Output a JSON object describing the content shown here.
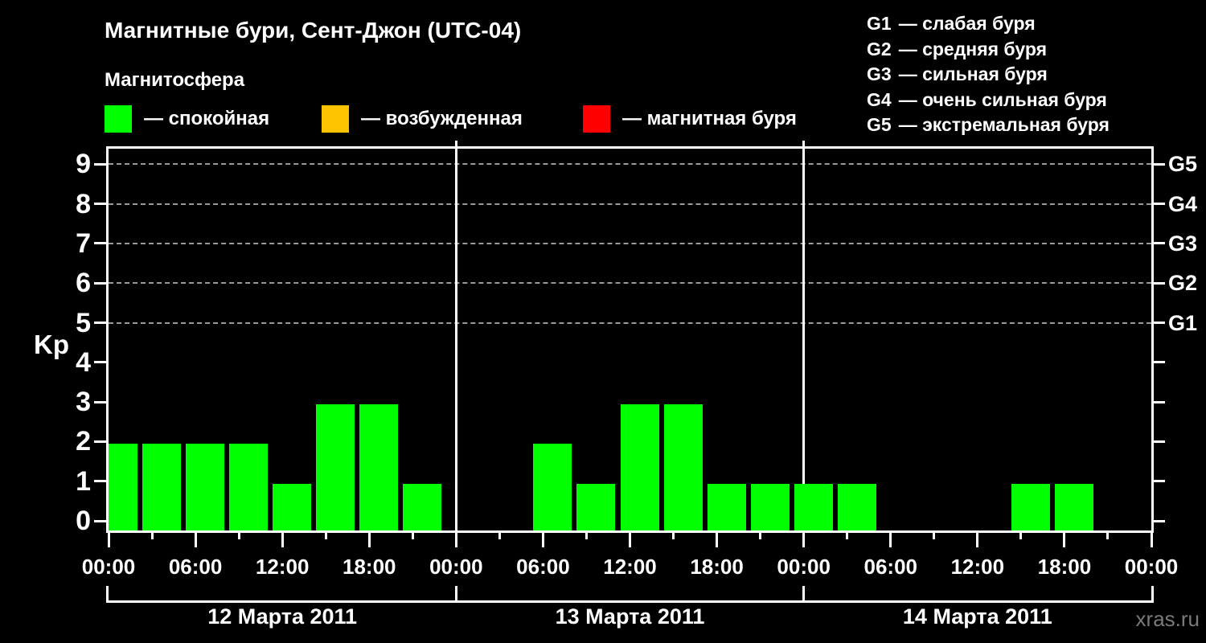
{
  "title": "Магнитные бури, Сент-Джон (UTC-04)",
  "subtitle": "Магнитосфера",
  "legend": {
    "items": [
      {
        "name": "quiet",
        "color": "#00ff00",
        "label": "— спокойная"
      },
      {
        "name": "disturbed",
        "color": "#ffc200",
        "label": "— возбужденная"
      },
      {
        "name": "storm",
        "color": "#ff0000",
        "label": "— магнитная буря"
      }
    ]
  },
  "storm_scale_legend": [
    {
      "code": "G1",
      "label": "— слабая буря"
    },
    {
      "code": "G2",
      "label": "— средняя буря"
    },
    {
      "code": "G3",
      "label": "— сильная буря"
    },
    {
      "code": "G4",
      "label": "— очень сильная буря"
    },
    {
      "code": "G5",
      "label": "— экстремальная буря"
    }
  ],
  "watermark": "xras.ru",
  "colors": {
    "background": "#000000",
    "text": "#ffffff",
    "grid": "#9a9a9a",
    "axis": "#ffffff",
    "watermark": "#7a7a7a"
  },
  "chart_data": {
    "type": "bar",
    "title": "Магнитные бури, Сент-Джон (UTC-04)",
    "xlabel": "",
    "ylabel": "Kp",
    "ylim": [
      0,
      9
    ],
    "y_ticks": [
      0,
      1,
      2,
      3,
      4,
      5,
      6,
      7,
      8,
      9
    ],
    "grid": "dashed horizontal lines at Kp 5,6,7,8,9",
    "legend_position": "top",
    "slot_hours": 3,
    "x_ticks": [
      "00:00",
      "06:00",
      "12:00",
      "18:00",
      "00:00",
      "06:00",
      "12:00",
      "18:00",
      "00:00",
      "06:00",
      "12:00",
      "18:00",
      "00:00"
    ],
    "right_axis": [
      {
        "label": "G1",
        "kp": 5
      },
      {
        "label": "G2",
        "kp": 6
      },
      {
        "label": "G3",
        "kp": 7
      },
      {
        "label": "G4",
        "kp": 8
      },
      {
        "label": "G5",
        "kp": 9
      }
    ],
    "days": [
      {
        "date": "12 Марта 2011",
        "kp": [
          2,
          2,
          2,
          2,
          1,
          3,
          3,
          1
        ]
      },
      {
        "date": "13 Марта 2011",
        "kp": [
          null,
          null,
          2,
          1,
          3,
          3,
          1,
          1
        ]
      },
      {
        "date": "14 Марта 2011",
        "kp": [
          1,
          1,
          null,
          null,
          null,
          1,
          1,
          null
        ]
      }
    ],
    "bar_color": "#00ff00"
  }
}
